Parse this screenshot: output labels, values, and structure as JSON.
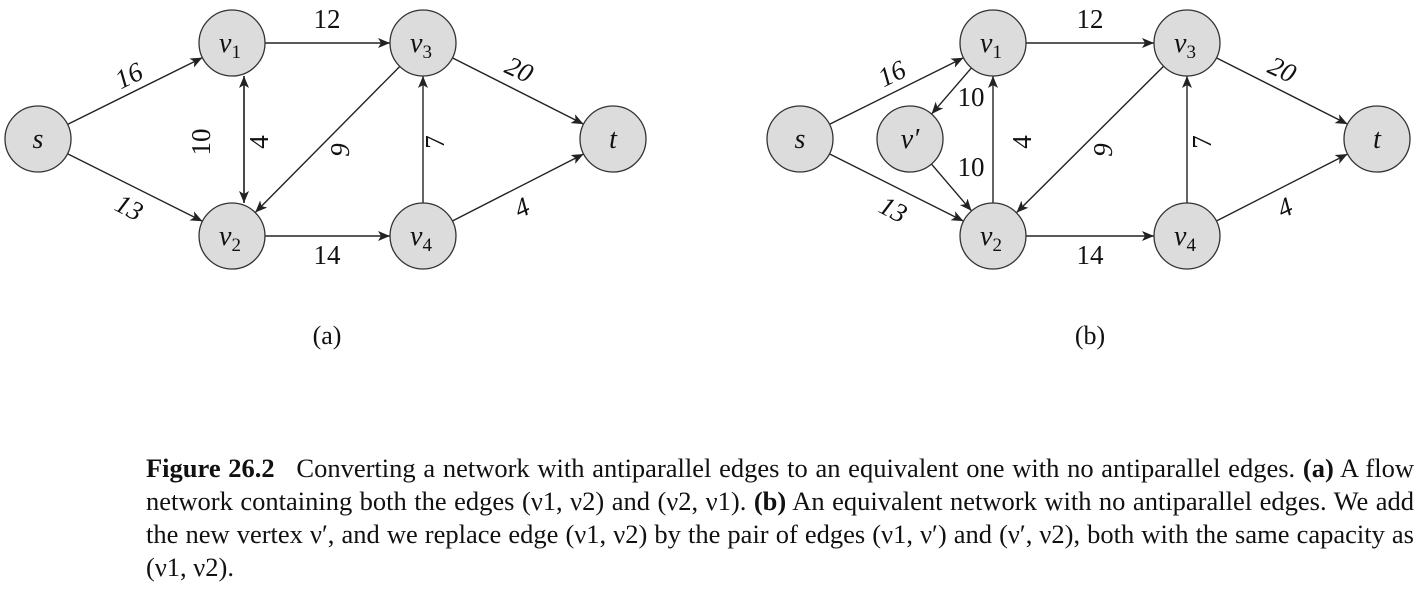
{
  "panels": {
    "a": {
      "label": "(a)",
      "vertices": {
        "s": {
          "name": "s",
          "sub": ""
        },
        "v1": {
          "name": "ν",
          "sub": "1"
        },
        "v2": {
          "name": "ν",
          "sub": "2"
        },
        "v3": {
          "name": "ν",
          "sub": "3"
        },
        "v4": {
          "name": "ν",
          "sub": "4"
        },
        "t": {
          "name": "t",
          "sub": ""
        }
      },
      "edges": [
        {
          "from": "s",
          "to": "v1",
          "capacity": "16"
        },
        {
          "from": "s",
          "to": "v2",
          "capacity": "13"
        },
        {
          "from": "v1",
          "to": "v3",
          "capacity": "12"
        },
        {
          "from": "v1",
          "to": "v2",
          "capacity": "10"
        },
        {
          "from": "v2",
          "to": "v1",
          "capacity": "4"
        },
        {
          "from": "v3",
          "to": "v2",
          "capacity": "9"
        },
        {
          "from": "v2",
          "to": "v4",
          "capacity": "14"
        },
        {
          "from": "v4",
          "to": "v3",
          "capacity": "7"
        },
        {
          "from": "v3",
          "to": "t",
          "capacity": "20"
        },
        {
          "from": "v4",
          "to": "t",
          "capacity": "4"
        }
      ]
    },
    "b": {
      "label": "(b)",
      "vertices": {
        "s": {
          "name": "s",
          "sub": ""
        },
        "v1": {
          "name": "ν",
          "sub": "1"
        },
        "vp": {
          "name": "ν′",
          "sub": ""
        },
        "v2": {
          "name": "ν",
          "sub": "2"
        },
        "v3": {
          "name": "ν",
          "sub": "3"
        },
        "v4": {
          "name": "ν",
          "sub": "4"
        },
        "t": {
          "name": "t",
          "sub": ""
        }
      },
      "edges": [
        {
          "from": "s",
          "to": "v1",
          "capacity": "16"
        },
        {
          "from": "s",
          "to": "v2",
          "capacity": "13"
        },
        {
          "from": "v1",
          "to": "v3",
          "capacity": "12"
        },
        {
          "from": "v1",
          "to": "vp",
          "capacity": "10"
        },
        {
          "from": "vp",
          "to": "v2",
          "capacity": "10"
        },
        {
          "from": "v2",
          "to": "v1",
          "capacity": "4"
        },
        {
          "from": "v3",
          "to": "v2",
          "capacity": "9"
        },
        {
          "from": "v2",
          "to": "v4",
          "capacity": "14"
        },
        {
          "from": "v4",
          "to": "v3",
          "capacity": "7"
        },
        {
          "from": "v3",
          "to": "t",
          "capacity": "20"
        },
        {
          "from": "v4",
          "to": "t",
          "capacity": "4"
        }
      ]
    }
  },
  "caption": {
    "figure_number": "Figure 26.2",
    "lead": "Converting a network with antiparallel edges to an equivalent one with no antiparallel edges.",
    "part_a_tag": "(a)",
    "part_a_text": "A flow network containing both the edges (ν1, ν2) and (ν2, ν1).",
    "part_b_tag": "(b)",
    "part_b_text": "An equivalent network with no antiparallel edges. We add the new vertex ν′, and we replace edge (ν1, ν2) by the pair of edges (ν1, ν′) and (ν′, ν2), both with the same capacity as (ν1, ν2)."
  }
}
